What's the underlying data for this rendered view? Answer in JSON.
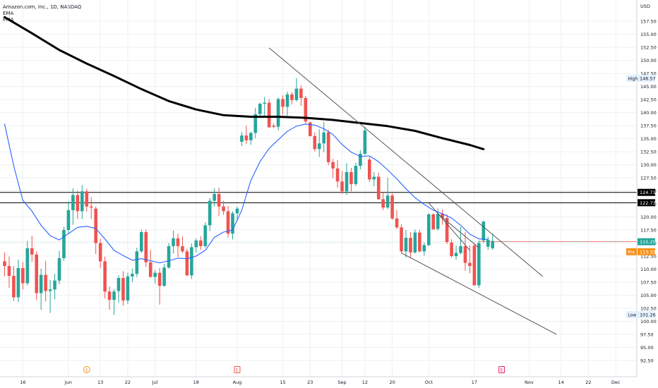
{
  "header": {
    "symbol_line": "Amazon.com, Inc., 1D, NASDAQ",
    "indicator_1": "EMA",
    "indicator_2": "EMA"
  },
  "colors": {
    "up": "#26a69a",
    "down": "#ef5350",
    "ema_fast": "#2962ff",
    "ema_slow": "#000000",
    "trendline": "#555555",
    "hline": "#000000",
    "current_line": "#ef5350",
    "last_price_badge": "#26a69a",
    "pre_badge": "#f7931a",
    "grid": "#eef0f3",
    "axis_text": "#131722",
    "marker_orange": "#f7931a",
    "marker_red": "#ef5350",
    "marker_pink": "#e91e63"
  },
  "chart_data": {
    "type": "candlestick",
    "y_axis": {
      "unit_label": "USD",
      "range": [
        91.0,
        160.5
      ],
      "ticks": [
        "92.50",
        "95.00",
        "97.50",
        "100.00",
        "102.50",
        "105.00",
        "107.50",
        "110.00",
        "112.50",
        "115.00",
        "117.50",
        "120.00",
        "122.50",
        "125.00",
        "127.50",
        "130.00",
        "132.50",
        "135.00",
        "137.50",
        "140.00",
        "142.50",
        "145.00",
        "147.50",
        "150.00",
        "152.50",
        "155.00",
        "157.50"
      ]
    },
    "x_axis": {
      "labels": [
        {
          "text": "16",
          "i": 4
        },
        {
          "text": "Jun",
          "i": 14
        },
        {
          "text": "13",
          "i": 21
        },
        {
          "text": "22",
          "i": 27
        },
        {
          "text": "Jul",
          "i": 33
        },
        {
          "text": "18",
          "i": 42
        },
        {
          "text": "Aug",
          "i": 51
        },
        {
          "text": "15",
          "i": 61
        },
        {
          "text": "23",
          "i": 67
        },
        {
          "text": "Sep",
          "i": 74
        },
        {
          "text": "12",
          "i": 79
        },
        {
          "text": "20",
          "i": 85
        },
        {
          "text": "Oct",
          "i": 93
        },
        {
          "text": "17",
          "i": 103
        },
        {
          "text": "Nov",
          "i": 115
        },
        {
          "text": "14",
          "i": 122
        },
        {
          "text": "22",
          "i": 128
        },
        {
          "text": "Dec",
          "i": 134
        }
      ]
    },
    "candles": [
      [
        111.5,
        113.2,
        108.6,
        110.6
      ],
      [
        110.6,
        112.4,
        106.4,
        108.7
      ],
      [
        108.7,
        110.6,
        103.9,
        104.6
      ],
      [
        104.6,
        111.8,
        103.7,
        110.2
      ],
      [
        110.2,
        111.4,
        106.1,
        107.3
      ],
      [
        107.3,
        115.4,
        106.9,
        114.0
      ],
      [
        114.0,
        116.4,
        111.4,
        112.8
      ],
      [
        112.8,
        113.4,
        104.1,
        105.4
      ],
      [
        105.4,
        110.1,
        102.2,
        108.9
      ],
      [
        108.9,
        111.6,
        103.8,
        105.8
      ],
      [
        105.8,
        107.9,
        101.6,
        106.1
      ],
      [
        106.1,
        109.1,
        104.2,
        107.8
      ],
      [
        107.8,
        113.5,
        107.1,
        112.1
      ],
      [
        112.1,
        118.1,
        111.6,
        117.5
      ],
      [
        117.5,
        123.0,
        116.7,
        121.3
      ],
      [
        121.3,
        125.5,
        118.5,
        124.2
      ],
      [
        124.2,
        125.0,
        119.6,
        121.1
      ],
      [
        121.1,
        126.1,
        119.6,
        124.9
      ],
      [
        124.9,
        125.4,
        121.0,
        122.0
      ],
      [
        122.0,
        123.8,
        119.6,
        121.8
      ],
      [
        121.6,
        122.0,
        112.9,
        115.0
      ],
      [
        115.0,
        115.8,
        110.2,
        111.5
      ],
      [
        111.5,
        112.4,
        104.4,
        105.7
      ],
      [
        105.7,
        106.7,
        102.2,
        104.1
      ],
      [
        104.1,
        106.1,
        101.2,
        105.7
      ],
      [
        105.8,
        108.8,
        103.6,
        108.3
      ],
      [
        108.3,
        109.6,
        103.0,
        104.0
      ],
      [
        104.0,
        109.3,
        103.3,
        108.6
      ],
      [
        108.6,
        110.1,
        107.5,
        109.1
      ],
      [
        109.1,
        114.1,
        108.5,
        113.4
      ],
      [
        113.4,
        117.6,
        113.1,
        117.1
      ],
      [
        117.1,
        117.6,
        110.4,
        111.3
      ],
      [
        111.3,
        113.7,
        108.4,
        108.5
      ],
      [
        108.5,
        109.8,
        107.2,
        109.3
      ],
      [
        109.3,
        110.2,
        103.2,
        106.8
      ],
      [
        106.8,
        111.0,
        106.6,
        110.3
      ],
      [
        110.3,
        115.0,
        110.1,
        114.4
      ],
      [
        114.4,
        117.4,
        113.0,
        115.9
      ],
      [
        115.9,
        116.8,
        112.3,
        114.4
      ],
      [
        114.4,
        116.3,
        113.1,
        113.4
      ],
      [
        113.4,
        113.9,
        108.7,
        108.8
      ],
      [
        108.8,
        114.9,
        108.1,
        114.2
      ],
      [
        114.2,
        115.9,
        113.2,
        115.5
      ],
      [
        115.5,
        116.3,
        113.7,
        114.4
      ],
      [
        114.4,
        119.0,
        114.1,
        118.4
      ],
      [
        118.4,
        123.6,
        117.3,
        123.1
      ],
      [
        123.1,
        125.5,
        122.0,
        124.4
      ],
      [
        124.4,
        125.6,
        120.2,
        122.0
      ],
      [
        122.0,
        123.1,
        120.4,
        121.1
      ],
      [
        121.1,
        122.1,
        116.1,
        116.8
      ],
      [
        116.8,
        121.1,
        115.7,
        120.7
      ],
      [
        120.7,
        122.0,
        119.2,
        121.6
      ],
      [
        134.4,
        136.3,
        133.6,
        135.6
      ],
      [
        135.6,
        137.5,
        134.0,
        134.7
      ],
      [
        134.7,
        136.3,
        133.8,
        136.1
      ],
      [
        136.1,
        140.9,
        135.1,
        139.7
      ],
      [
        139.7,
        141.9,
        139.1,
        141.7
      ],
      [
        141.7,
        143.0,
        139.4,
        141.9
      ],
      [
        141.9,
        142.6,
        137.0,
        137.2
      ],
      [
        137.5,
        137.9,
        137.0,
        137.3
      ],
      [
        137.3,
        142.9,
        136.6,
        142.6
      ],
      [
        142.6,
        143.3,
        139.6,
        141.1
      ],
      [
        141.1,
        144.0,
        139.4,
        143.5
      ],
      [
        143.5,
        143.9,
        141.6,
        142.4
      ],
      [
        142.4,
        146.6,
        142.1,
        144.6
      ],
      [
        144.6,
        145.2,
        141.3,
        142.8
      ],
      [
        142.8,
        143.2,
        137.7,
        138.3
      ],
      [
        138.1,
        138.3,
        135.4,
        135.5
      ],
      [
        135.5,
        136.2,
        132.6,
        133.0
      ],
      [
        133.0,
        136.8,
        131.5,
        134.1
      ],
      [
        134.1,
        138.2,
        132.4,
        136.2
      ],
      [
        136.2,
        136.7,
        129.9,
        130.5
      ],
      [
        130.5,
        131.1,
        127.4,
        129.3
      ],
      [
        129.3,
        130.9,
        125.6,
        126.8
      ],
      [
        126.8,
        128.8,
        124.4,
        124.9
      ],
      [
        124.9,
        130.3,
        124.2,
        128.6
      ],
      [
        128.6,
        129.4,
        124.9,
        126.3
      ],
      [
        126.3,
        130.4,
        125.9,
        129.8
      ],
      [
        129.8,
        132.8,
        129.1,
        132.1
      ],
      [
        132.1,
        137.3,
        131.9,
        136.6
      ],
      [
        131.0,
        131.5,
        126.7,
        127.2
      ],
      [
        127.2,
        128.6,
        125.9,
        127.7
      ],
      [
        127.7,
        128.5,
        123.3,
        123.4
      ],
      [
        123.4,
        124.7,
        121.3,
        121.8
      ],
      [
        121.8,
        127.5,
        121.5,
        124.1
      ],
      [
        124.1,
        124.5,
        119.4,
        119.7
      ],
      [
        119.7,
        121.3,
        117.7,
        118.0
      ],
      [
        118.0,
        118.6,
        113.0,
        113.4
      ],
      [
        113.4,
        117.5,
        112.2,
        116.0
      ],
      [
        116.0,
        117.1,
        112.1,
        113.2
      ],
      [
        113.2,
        117.6,
        113.0,
        117.0
      ],
      [
        117.0,
        117.5,
        113.2,
        113.4
      ],
      [
        113.4,
        115.1,
        112.6,
        114.6
      ],
      [
        114.6,
        120.7,
        114.4,
        120.5
      ],
      [
        120.5,
        120.7,
        117.6,
        117.6
      ],
      [
        117.7,
        121.6,
        117.4,
        120.6
      ],
      [
        120.6,
        121.4,
        118.5,
        119.8
      ],
      [
        119.8,
        120.5,
        114.8,
        115.2
      ],
      [
        115.1,
        115.7,
        112.2,
        112.5
      ],
      [
        112.5,
        114.5,
        111.8,
        113.1
      ],
      [
        113.1,
        118.1,
        112.8,
        114.4
      ],
      [
        114.4,
        117.1,
        109.7,
        111.2
      ],
      [
        111.2,
        114.6,
        109.2,
        110.6
      ],
      [
        114.5,
        115.0,
        106.8,
        106.9
      ],
      [
        106.9,
        115.5,
        106.4,
        115.0
      ],
      [
        115.5,
        119.3,
        115.0,
        119.1
      ],
      [
        114.3,
        116.2,
        113.7,
        115.6
      ],
      [
        114.0,
        116.8,
        113.7,
        115.4
      ]
    ],
    "ema_fast": {
      "name": "EMA",
      "points": [
        [
          0,
          137.8
        ],
        [
          2,
          129.8
        ],
        [
          4,
          123.2
        ],
        [
          6,
          121.1
        ],
        [
          8,
          118.4
        ],
        [
          10,
          116.4
        ],
        [
          12,
          115.6
        ],
        [
          14,
          116.8
        ],
        [
          16,
          118.0
        ],
        [
          18,
          118.2
        ],
        [
          20,
          117.8
        ],
        [
          22,
          115.8
        ],
        [
          24,
          113.6
        ],
        [
          26,
          112.6
        ],
        [
          28,
          111.7
        ],
        [
          30,
          112.0
        ],
        [
          32,
          111.6
        ],
        [
          34,
          111.2
        ],
        [
          36,
          111.6
        ],
        [
          38,
          112.1
        ],
        [
          40,
          112.0
        ],
        [
          42,
          112.5
        ],
        [
          44,
          113.6
        ],
        [
          46,
          116.1
        ],
        [
          48,
          117.1
        ],
        [
          50,
          117.5
        ],
        [
          52,
          121.3
        ],
        [
          54,
          127.0
        ],
        [
          56,
          130.6
        ],
        [
          58,
          133.1
        ],
        [
          60,
          134.8
        ],
        [
          62,
          136.4
        ],
        [
          64,
          137.4
        ],
        [
          66,
          137.8
        ],
        [
          68,
          137.6
        ],
        [
          70,
          136.9
        ],
        [
          72,
          135.8
        ],
        [
          74,
          133.9
        ],
        [
          76,
          132.4
        ],
        [
          78,
          131.6
        ],
        [
          80,
          131.7
        ],
        [
          82,
          130.6
        ],
        [
          84,
          129.0
        ],
        [
          86,
          127.3
        ],
        [
          88,
          125.4
        ],
        [
          90,
          123.7
        ],
        [
          92,
          122.4
        ],
        [
          94,
          121.3
        ],
        [
          96,
          120.6
        ],
        [
          98,
          119.8
        ],
        [
          100,
          118.4
        ],
        [
          102,
          116.7
        ],
        [
          104,
          115.8
        ],
        [
          106,
          115.7
        ]
      ]
    },
    "ema_slow": {
      "name": "EMA",
      "points": [
        [
          0,
          158.3
        ],
        [
          6,
          155.2
        ],
        [
          12,
          152.0
        ],
        [
          18,
          149.4
        ],
        [
          24,
          147.0
        ],
        [
          30,
          144.5
        ],
        [
          36,
          142.2
        ],
        [
          42,
          140.6
        ],
        [
          48,
          139.5
        ],
        [
          54,
          139.2
        ],
        [
          60,
          139.2
        ],
        [
          66,
          139.0
        ],
        [
          72,
          138.6
        ],
        [
          78,
          138.0
        ],
        [
          84,
          137.4
        ],
        [
          90,
          136.5
        ],
        [
          96,
          135.1
        ],
        [
          102,
          133.8
        ],
        [
          105,
          133.0
        ]
      ]
    },
    "trendlines": [
      {
        "from": [
          58,
          152.4
        ],
        "to": [
          118,
          108.6
        ]
      },
      {
        "from": [
          87,
          113.1
        ],
        "to": [
          121,
          97.5
        ]
      },
      {
        "from": [
          93,
          122.7
        ],
        "to": [
          102,
          113.6
        ]
      },
      {
        "from": [
          95,
          120.6
        ],
        "to": [
          104,
          114.1
        ]
      }
    ],
    "horizontal_lines": [
      {
        "value": 124.71,
        "label": "124.71"
      },
      {
        "value": 122.73,
        "label": "122.73"
      }
    ],
    "current_price": {
      "value": 115.25,
      "label": "115.25",
      "from_i": 104
    },
    "pre_market": {
      "value": 113.33,
      "label": "113.33",
      "tag": "Pre"
    },
    "high_marker": {
      "value": 146.57,
      "label": "146.57",
      "tag": "High"
    },
    "low_marker": {
      "value": 101.26,
      "label": "101.26",
      "tag": "Low"
    },
    "event_markers": [
      {
        "i": 18,
        "glyph": "$",
        "kind": "dividend"
      },
      {
        "i": 51,
        "glyph": "E",
        "kind": "earnings"
      },
      {
        "i": 109,
        "glyph": "E",
        "kind": "earnings-upcoming"
      }
    ]
  }
}
